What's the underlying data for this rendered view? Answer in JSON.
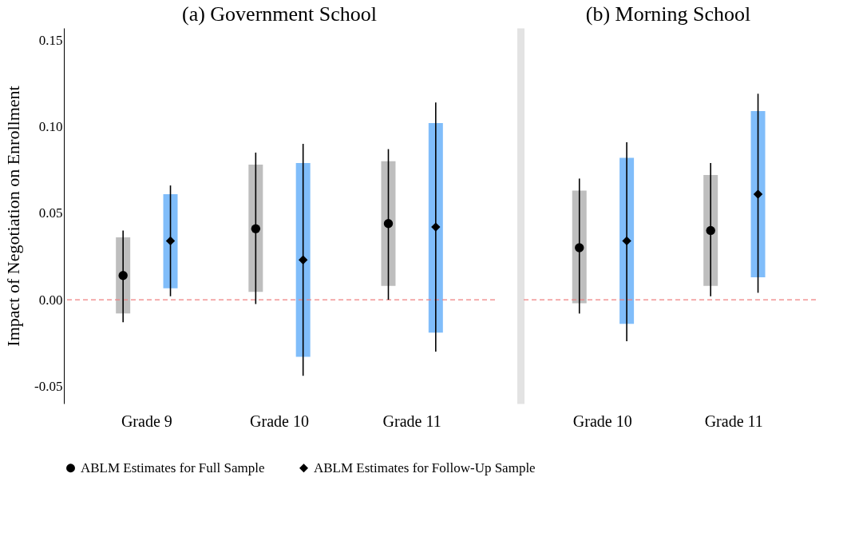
{
  "chart_data": [
    {
      "type": "scatter",
      "title": "(a) Government School",
      "ylabel": "Impact of Negotiation on Enrollment",
      "categories": [
        "Grade 9",
        "Grade 10",
        "Grade 11"
      ],
      "ylim": [
        -0.06,
        0.157
      ],
      "yticks": [
        {
          "value": -0.05,
          "label": "-0.05"
        },
        {
          "value": 0,
          "label": "0.00"
        },
        {
          "value": 0.05,
          "label": "0.05"
        },
        {
          "value": 0.1,
          "label": "0.10"
        },
        {
          "value": 0.15,
          "label": "0.15"
        }
      ],
      "grid": false,
      "legend": "bottom",
      "ref_lines": [
        {
          "axis": "y",
          "value": 0,
          "color": "#f08080",
          "line_style": "dashed"
        }
      ],
      "series": [
        {
          "type": "bar",
          "color": "#bebebe",
          "base": [
            -0.008,
            0.0045,
            0.008
          ],
          "values": [
            0.044,
            0.0735,
            0.072
          ]
        },
        {
          "type": "bar",
          "color": "#80bdfa",
          "base": [
            0.0066,
            -0.033,
            -0.019
          ],
          "values": [
            0.0544,
            0.112,
            0.121
          ]
        },
        {
          "name": "ABLM Estimates for Full Sample",
          "color": "#000000",
          "marker": "circle",
          "values": [
            0.014,
            0.041,
            0.044
          ],
          "errors": [
            [
              -0.013,
              0.04
            ],
            [
              -0.0025,
              0.085
            ],
            [
              0.0,
              0.087
            ]
          ]
        },
        {
          "name": "ABLM Estimates for Follow-Up Sample",
          "color": "#000000",
          "marker": "diamond",
          "values": [
            0.034,
            0.023,
            0.042
          ],
          "errors": [
            [
              0.002,
              0.066
            ],
            [
              -0.044,
              0.09
            ],
            [
              -0.03,
              0.114
            ]
          ]
        }
      ]
    },
    {
      "type": "scatter",
      "title": "(b) Morning School",
      "categories": [
        "Grade 10",
        "Grade 11"
      ],
      "ylim": [
        -0.06,
        0.157
      ],
      "tick_labels": "x",
      "grid": false,
      "ref_lines": [
        {
          "axis": "y",
          "value": 0,
          "color": "#f08080",
          "line_style": "dashed"
        }
      ],
      "series": [
        {
          "type": "bar",
          "color": "#bebebe",
          "base": [
            -0.002,
            0.008
          ],
          "values": [
            0.065,
            0.064
          ]
        },
        {
          "type": "bar",
          "color": "#80bdfa",
          "base": [
            -0.014,
            0.013
          ],
          "values": [
            0.096,
            0.096
          ]
        },
        {
          "name": "ABLM Estimates for Full Sample",
          "color": "#000000",
          "marker": "circle",
          "values": [
            0.03,
            0.04
          ],
          "errors": [
            [
              -0.008,
              0.07
            ],
            [
              0.002,
              0.079
            ]
          ]
        },
        {
          "name": "ABLM Estimates for Follow-Up Sample",
          "color": "#000000",
          "marker": "diamond",
          "values": [
            0.034,
            0.061
          ],
          "errors": [
            [
              -0.024,
              0.091
            ],
            [
              0.004,
              0.119
            ]
          ]
        }
      ]
    }
  ]
}
